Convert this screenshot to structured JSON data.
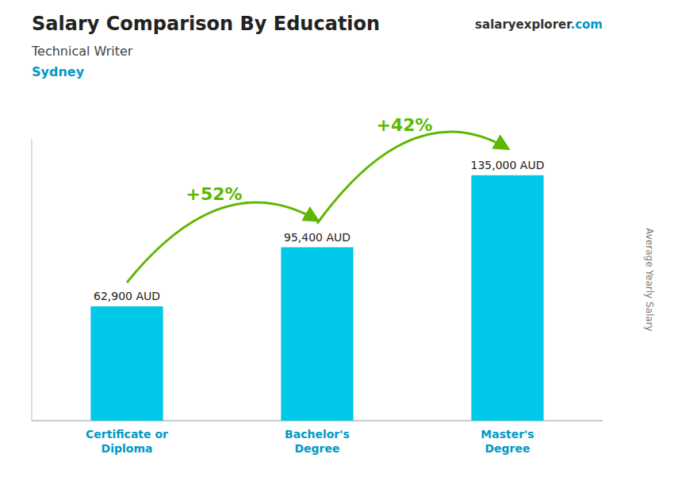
{
  "chart_data": {
    "type": "bar",
    "title": "Salary Comparison By Education",
    "subtitle": "Technical Writer",
    "city": "Sydney",
    "source": [
      "salary",
      "explorer",
      ".com"
    ],
    "ylabel": "Average Yearly Salary",
    "categories": [
      "Certificate or\nDiploma",
      "Bachelor's\nDegree",
      "Master's\nDegree"
    ],
    "values": [
      62900,
      95400,
      135000
    ],
    "value_labels": [
      "62,900 AUD",
      "95,400 AUD",
      "135,000 AUD"
    ],
    "data_labels": true,
    "annotations": [
      "+52%",
      "+42%"
    ],
    "color": "#00c8e8",
    "ylim": [
      0,
      155000
    ],
    "yticks": [],
    "tick_labels": "x",
    "grid": false
  }
}
